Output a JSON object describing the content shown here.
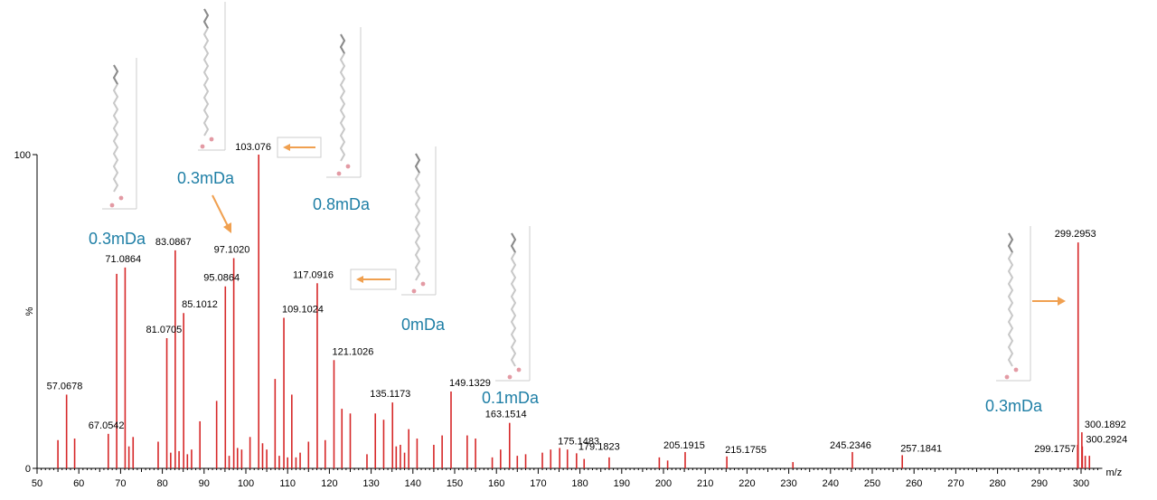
{
  "chart_data": {
    "type": "bar",
    "xlabel": "m/z",
    "ylabel": "%",
    "xlim": [
      50,
      304
    ],
    "ylim": [
      0,
      100
    ],
    "yticks": [
      {
        "value": 0,
        "label": "0"
      },
      {
        "value": 100,
        "label": "100"
      }
    ],
    "xticks": [
      50,
      60,
      70,
      80,
      90,
      100,
      110,
      120,
      130,
      140,
      150,
      160,
      170,
      180,
      190,
      200,
      210,
      220,
      230,
      240,
      250,
      260,
      270,
      280,
      290,
      300
    ],
    "bar_color": "#d62728",
    "labeled_peaks": [
      {
        "mz": 57.0678,
        "intensity": 23.5,
        "label": "57.0678"
      },
      {
        "mz": 67.0542,
        "intensity": 11.0,
        "label": "67.0542"
      },
      {
        "mz": 69.0699,
        "intensity": 62.0,
        "label": ""
      },
      {
        "mz": 71.0864,
        "intensity": 64.0,
        "label": "71.0864"
      },
      {
        "mz": 81.0705,
        "intensity": 41.5,
        "label": "81.0705"
      },
      {
        "mz": 83.0867,
        "intensity": 69.5,
        "label": "83.0867"
      },
      {
        "mz": 85.1012,
        "intensity": 49.5,
        "label": "85.1012"
      },
      {
        "mz": 95.0864,
        "intensity": 58.0,
        "label": "95.0864"
      },
      {
        "mz": 97.102,
        "intensity": 67.0,
        "label": "97.1020"
      },
      {
        "mz": 103.076,
        "intensity": 100.0,
        "label": "103.076"
      },
      {
        "mz": 109.1024,
        "intensity": 48.0,
        "label": "109.1024"
      },
      {
        "mz": 117.0916,
        "intensity": 59.0,
        "label": "117.0916"
      },
      {
        "mz": 121.1026,
        "intensity": 34.5,
        "label": "121.1026"
      },
      {
        "mz": 135.1173,
        "intensity": 21.0,
        "label": "135.1173"
      },
      {
        "mz": 149.1329,
        "intensity": 24.5,
        "label": "149.1329"
      },
      {
        "mz": 163.1514,
        "intensity": 14.5,
        "label": "163.1514"
      },
      {
        "mz": 175.1483,
        "intensity": 6.5,
        "label": "175.1483"
      },
      {
        "mz": 179.1823,
        "intensity": 4.8,
        "label": "179.1823"
      },
      {
        "mz": 205.1915,
        "intensity": 5.2,
        "label": "205.1915"
      },
      {
        "mz": 215.1755,
        "intensity": 3.8,
        "label": "215.1755"
      },
      {
        "mz": 245.2346,
        "intensity": 5.2,
        "label": "245.2346"
      },
      {
        "mz": 257.1841,
        "intensity": 4.2,
        "label": "257.1841"
      },
      {
        "mz": 299.1757,
        "intensity": 7.5,
        "label": "299.1757"
      },
      {
        "mz": 299.2953,
        "intensity": 72.0,
        "label": "299.2953"
      },
      {
        "mz": 300.1892,
        "intensity": 11.5,
        "label": "300.1892"
      },
      {
        "mz": 300.2924,
        "intensity": 7.0,
        "label": "300.2924"
      }
    ],
    "minor_peaks": [
      {
        "mz": 55,
        "intensity": 9
      },
      {
        "mz": 59,
        "intensity": 9.5
      },
      {
        "mz": 72,
        "intensity": 7
      },
      {
        "mz": 73,
        "intensity": 10
      },
      {
        "mz": 79,
        "intensity": 8.5
      },
      {
        "mz": 82,
        "intensity": 5
      },
      {
        "mz": 84,
        "intensity": 5.5
      },
      {
        "mz": 86,
        "intensity": 4.5
      },
      {
        "mz": 87,
        "intensity": 6
      },
      {
        "mz": 89,
        "intensity": 15
      },
      {
        "mz": 93,
        "intensity": 21.5
      },
      {
        "mz": 96,
        "intensity": 4
      },
      {
        "mz": 98,
        "intensity": 6.5
      },
      {
        "mz": 99,
        "intensity": 6
      },
      {
        "mz": 101,
        "intensity": 10
      },
      {
        "mz": 104,
        "intensity": 8
      },
      {
        "mz": 105,
        "intensity": 6
      },
      {
        "mz": 107,
        "intensity": 28.5
      },
      {
        "mz": 108,
        "intensity": 4
      },
      {
        "mz": 110,
        "intensity": 3.5
      },
      {
        "mz": 111,
        "intensity": 23.5
      },
      {
        "mz": 112,
        "intensity": 3.5
      },
      {
        "mz": 113,
        "intensity": 5
      },
      {
        "mz": 115,
        "intensity": 8.5
      },
      {
        "mz": 119,
        "intensity": 9
      },
      {
        "mz": 123,
        "intensity": 19
      },
      {
        "mz": 125,
        "intensity": 17.5
      },
      {
        "mz": 129,
        "intensity": 4.5
      },
      {
        "mz": 131,
        "intensity": 17.5
      },
      {
        "mz": 133,
        "intensity": 15.5
      },
      {
        "mz": 136,
        "intensity": 7
      },
      {
        "mz": 137,
        "intensity": 7.5
      },
      {
        "mz": 138,
        "intensity": 5
      },
      {
        "mz": 139,
        "intensity": 12.5
      },
      {
        "mz": 141,
        "intensity": 9.5
      },
      {
        "mz": 145,
        "intensity": 7.5
      },
      {
        "mz": 147,
        "intensity": 10.5
      },
      {
        "mz": 153,
        "intensity": 10.5
      },
      {
        "mz": 155,
        "intensity": 9.5
      },
      {
        "mz": 159,
        "intensity": 3.5
      },
      {
        "mz": 161,
        "intensity": 6
      },
      {
        "mz": 165,
        "intensity": 4
      },
      {
        "mz": 167,
        "intensity": 4.5
      },
      {
        "mz": 171,
        "intensity": 5
      },
      {
        "mz": 173,
        "intensity": 6
      },
      {
        "mz": 177,
        "intensity": 6
      },
      {
        "mz": 181,
        "intensity": 3
      },
      {
        "mz": 187,
        "intensity": 3.5
      },
      {
        "mz": 199,
        "intensity": 3.5
      },
      {
        "mz": 201,
        "intensity": 2.5
      },
      {
        "mz": 231,
        "intensity": 2
      },
      {
        "mz": 301,
        "intensity": 4
      },
      {
        "mz": 302,
        "intensity": 4
      }
    ],
    "annotations": [
      {
        "text": "0.3mDa",
        "ref_mz": 71.0864
      },
      {
        "text": "0.3mDa",
        "ref_mz": 97.102
      },
      {
        "text": "0.8mDa",
        "ref_mz": 103.076
      },
      {
        "text": "0mDa",
        "ref_mz": 117.0916
      },
      {
        "text": "0.1mDa",
        "ref_mz": 163.1514
      },
      {
        "text": "0.3mDa",
        "ref_mz": 299.2953
      }
    ],
    "annotation_color": "#1f7fa6",
    "arrow_color": "#f0a050"
  }
}
